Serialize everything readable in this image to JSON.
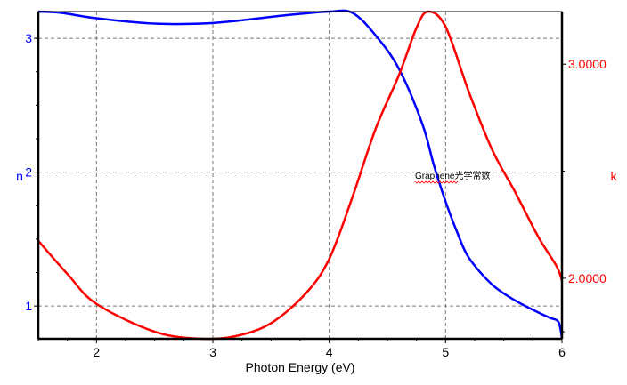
{
  "chart_data": {
    "type": "line",
    "xlabel": "Photon Energy (eV)",
    "ylabel_left": "n",
    "ylabel_right": "k",
    "xlim": [
      1.5,
      6
    ],
    "ylim_left": [
      0.755,
      3.2
    ],
    "ylim_right": [
      1.717,
      3.246
    ],
    "x_ticks": [
      "2",
      "3",
      "4",
      "5",
      "6"
    ],
    "y_left_ticks": [
      "1",
      "2",
      "3"
    ],
    "y_right_ticks": [
      "3.0000",
      "2.0000"
    ],
    "grid": true,
    "annotation": "Graphene光学常数",
    "series": [
      {
        "axis": "left",
        "color": "#0000ff",
        "x": [
          1.5,
          1.7,
          2.0,
          2.5,
          2.9,
          3.2,
          3.6,
          4.0,
          4.2,
          4.4,
          4.6,
          4.8,
          4.9,
          5.0,
          5.1,
          5.2,
          5.4,
          5.6,
          5.8,
          5.9,
          5.97,
          6.0
        ],
        "y": [
          3.2,
          3.19,
          3.15,
          3.11,
          3.11,
          3.13,
          3.17,
          3.2,
          3.19,
          3.02,
          2.77,
          2.36,
          2.05,
          1.78,
          1.55,
          1.36,
          1.16,
          1.04,
          0.95,
          0.91,
          0.88,
          0.76
        ]
      },
      {
        "axis": "right",
        "color": "#ff0000",
        "x": [
          1.5,
          1.75,
          2.0,
          2.5,
          2.9,
          3.2,
          3.5,
          3.8,
          4.0,
          4.2,
          4.4,
          4.6,
          4.75,
          4.85,
          5.0,
          5.2,
          5.4,
          5.6,
          5.8,
          5.95,
          6.0
        ],
        "y": [
          2.175,
          2.02,
          1.88,
          1.75,
          1.717,
          1.73,
          1.79,
          1.93,
          2.09,
          2.38,
          2.7,
          2.95,
          3.17,
          3.246,
          3.175,
          2.87,
          2.6,
          2.4,
          2.19,
          2.06,
          1.99
        ]
      }
    ]
  }
}
